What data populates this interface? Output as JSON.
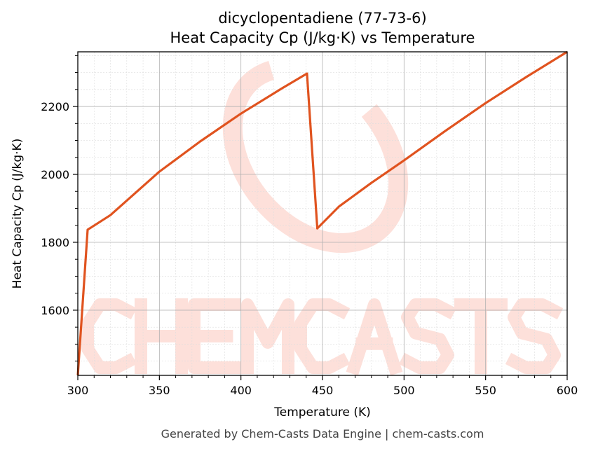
{
  "chart_data": {
    "type": "line",
    "title": "dicyclopentadiene (77-73-6)",
    "subtitle": "Heat Capacity Cp (J/kg·K) vs Temperature",
    "xlabel": "Temperature (K)",
    "ylabel": "Heat Capacity Cp (J/kg·K)",
    "xlim": [
      300,
      600
    ],
    "ylim": [
      1408,
      2361
    ],
    "xticks": [
      300,
      350,
      400,
      450,
      500,
      550,
      600
    ],
    "yticks": [
      1600,
      1800,
      2000,
      2200
    ],
    "grid": true,
    "series": [
      {
        "name": "Cp",
        "color": "#e0531f",
        "x": [
          300,
          306,
          320,
          350,
          375,
          400,
          425,
          440.5,
          446.8,
          460,
          480,
          500,
          525,
          550,
          575,
          600
        ],
        "y": [
          1408,
          1837,
          1880,
          2008,
          2097,
          2179,
          2253,
          2297,
          1841,
          1905,
          1975,
          2041,
          2127,
          2210,
          2287,
          2361
        ]
      }
    ]
  },
  "watermark": {
    "text": "CHEMCASTS",
    "color": "#fde0da"
  },
  "footer": "Generated by Chem-Casts Data Engine | chem-casts.com"
}
